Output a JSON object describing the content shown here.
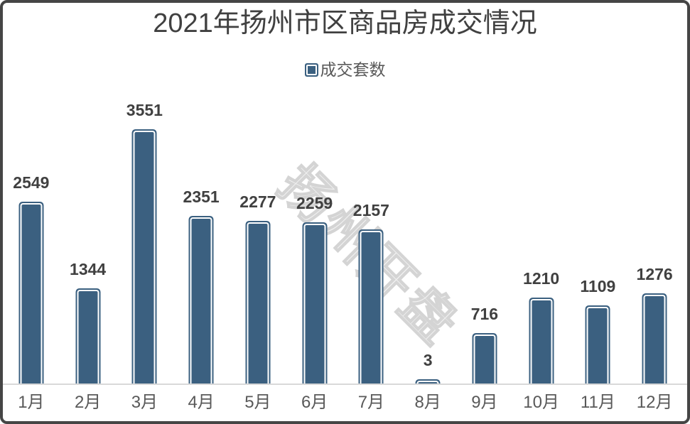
{
  "title": "2021年扬州市区商品房成交情况",
  "legend": {
    "label": "成交套数"
  },
  "watermark": {
    "text": "扬州开盘"
  },
  "colors": {
    "bar_fill": "#3b6080",
    "bar_inner_ring": "#ffffff",
    "title_text": "#404040",
    "data_label_text": "#404040",
    "axis_label_text": "#595959",
    "axis_line": "#d9d9d9",
    "frame_border": "#454545",
    "watermark": "#d4d4d4"
  },
  "chart_data": {
    "type": "bar",
    "title": "2021年扬州市区商品房成交情况",
    "categories": [
      "1月",
      "2月",
      "3月",
      "4月",
      "5月",
      "6月",
      "7月",
      "8月",
      "9月",
      "10月",
      "11月",
      "12月"
    ],
    "series": [
      {
        "name": "成交套数",
        "values": [
          2549,
          1344,
          3551,
          2351,
          2277,
          2259,
          2157,
          3,
          716,
          1210,
          1109,
          1276
        ]
      }
    ],
    "xlabel": "",
    "ylabel": "",
    "data_labels": true,
    "legend_position": "top-center",
    "grid": false,
    "y_axis_visible": false,
    "x_axis_visible": true
  }
}
